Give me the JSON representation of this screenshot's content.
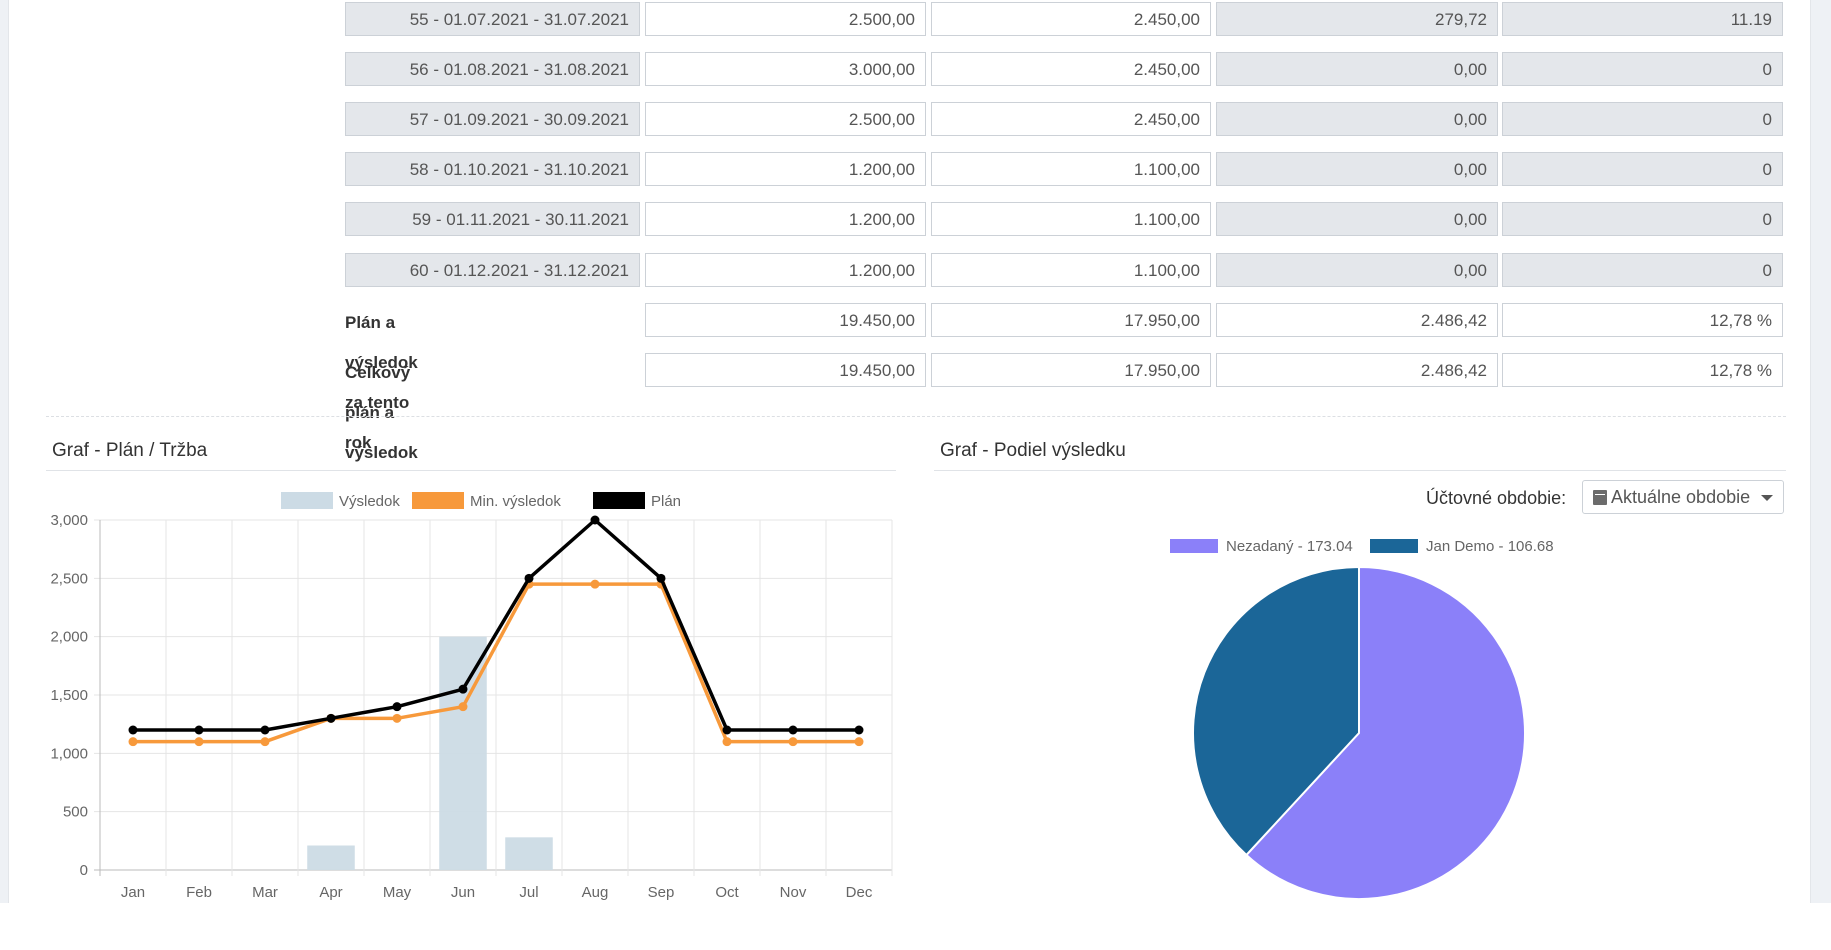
{
  "table": {
    "rows": [
      {
        "period": "55 - 01.07.2021 - 31.07.2021",
        "plan": "2.500,00",
        "min": "2.450,00",
        "result": "279,72",
        "pct": "11.19"
      },
      {
        "period": "56 - 01.08.2021 - 31.08.2021",
        "plan": "3.000,00",
        "min": "2.450,00",
        "result": "0,00",
        "pct": "0"
      },
      {
        "period": "57 - 01.09.2021 - 30.09.2021",
        "plan": "2.500,00",
        "min": "2.450,00",
        "result": "0,00",
        "pct": "0"
      },
      {
        "period": "58 - 01.10.2021 - 31.10.2021",
        "plan": "1.200,00",
        "min": "1.100,00",
        "result": "0,00",
        "pct": "0"
      },
      {
        "period": "59 - 01.11.2021 - 30.11.2021",
        "plan": "1.200,00",
        "min": "1.100,00",
        "result": "0,00",
        "pct": "0"
      },
      {
        "period": "60 - 01.12.2021 - 31.12.2021",
        "plan": "1.200,00",
        "min": "1.100,00",
        "result": "0,00",
        "pct": "0"
      }
    ],
    "summary": [
      {
        "label": "Plán a výsledok za tento rok",
        "plan": "19.450,00",
        "min": "17.950,00",
        "result": "2.486,42",
        "pct": "12,78 %"
      },
      {
        "label": "Celkový plán a výsledok",
        "plan": "19.450,00",
        "min": "17.950,00",
        "result": "2.486,42",
        "pct": "12,78 %"
      }
    ]
  },
  "left_panel": {
    "title": "Graf - Plán / Tržba"
  },
  "right_panel": {
    "title": "Graf - Podiel výsledku",
    "period_label": "Účtovné obdobie:",
    "period_value": "Aktuálne obdobie",
    "icons": {
      "calendar": "calendar-icon",
      "caret": "chevron-down-icon"
    }
  },
  "chart_data": [
    {
      "type": "bar",
      "categories": [
        "Jan",
        "Feb",
        "Mar",
        "Apr",
        "May",
        "Jun",
        "Jul",
        "Aug",
        "Sep",
        "Oct",
        "Nov",
        "Dec"
      ],
      "series": [
        {
          "name": "Výsledok",
          "type": "bar",
          "color": "#ccdbe5",
          "values": [
            0,
            0,
            0,
            210,
            0,
            2000,
            280,
            0,
            0,
            0,
            0,
            0
          ]
        },
        {
          "name": "Min. výsledok",
          "type": "line",
          "color": "#f7993b",
          "values": [
            1100,
            1100,
            1100,
            1300,
            1300,
            1400,
            2450,
            2450,
            2450,
            1100,
            1100,
            1100
          ]
        },
        {
          "name": "Plán",
          "type": "line",
          "color": "#000000",
          "values": [
            1200,
            1200,
            1200,
            1300,
            1400,
            1550,
            2500,
            3000,
            2500,
            1200,
            1200,
            1200
          ]
        }
      ],
      "yticks": [
        "0",
        "500",
        "1,000",
        "1,500",
        "2,000",
        "2,500",
        "3,000"
      ],
      "ylim": [
        0,
        3000
      ],
      "grid": true,
      "legend": "top"
    },
    {
      "type": "pie",
      "slices": [
        {
          "label": "Nezadaný - 173.04",
          "value": 173.04,
          "color": "#8b80f9"
        },
        {
          "label": "Jan Demo - 106.68",
          "value": 106.68,
          "color": "#1b6698"
        }
      ],
      "legend": "top"
    }
  ]
}
